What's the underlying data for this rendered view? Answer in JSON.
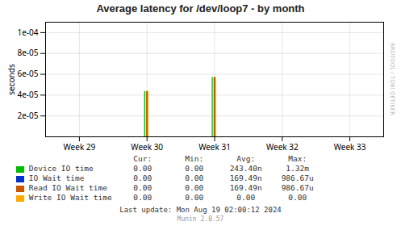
{
  "chart_data": {
    "type": "bar",
    "title": "Average latency for /dev/loop7 - by month",
    "ylabel": "seconds",
    "categories": [
      "Week 29",
      "Week 30",
      "Week 31",
      "Week 32",
      "Week 33"
    ],
    "series": [
      {
        "name": "Device IO time",
        "color": "#00bb00",
        "values": [
          null,
          4.35e-05,
          5.7e-05,
          null,
          null
        ],
        "stats": [
          "0.00",
          "0.00",
          "243.40n",
          "1.32m"
        ]
      },
      {
        "name": "IO Wait time",
        "color": "#0033cc",
        "values": [
          null,
          null,
          null,
          null,
          null
        ],
        "stats": [
          "0.00",
          "0.00",
          "169.49n",
          "986.67u"
        ]
      },
      {
        "name": "Read IO Wait time",
        "color": "#cc5500",
        "values": [
          null,
          4.35e-05,
          5.7e-05,
          null,
          null
        ],
        "stats": [
          "0.00",
          "0.00",
          "169.49n",
          "986.67u"
        ]
      },
      {
        "name": "Write IO Wait time",
        "color": "#ffaa00",
        "values": [
          null,
          4.35e-05,
          5.7e-05,
          null,
          null
        ],
        "stats": [
          "0.00",
          "0.00",
          "0.00",
          "0.00"
        ]
      }
    ],
    "stats_columns": [
      "Cur:",
      "Min:",
      "Avg:",
      "Max:"
    ],
    "ylim": [
      0,
      0.00011
    ],
    "yticks": [
      {
        "value": 2e-05,
        "label": "2e-05"
      },
      {
        "value": 4e-05,
        "label": "4e-05"
      },
      {
        "value": 6e-05,
        "label": "6e-05"
      },
      {
        "value": 8e-05,
        "label": "8e-05"
      },
      {
        "value": 0.0001,
        "label": "1e-04"
      }
    ],
    "grid": true,
    "legend": "bottom",
    "footer": "Last update: Mon Aug 19 02:00:12 2024",
    "munin_label": "Munin 2.0.57",
    "watermark": "RRDTOOL / TOBI OETIKER"
  }
}
